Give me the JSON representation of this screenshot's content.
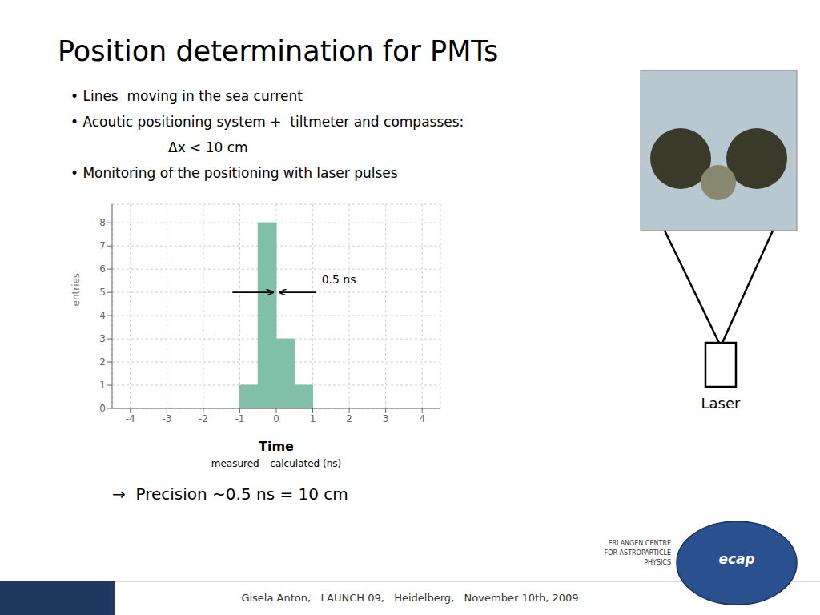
{
  "chart_data": {
    "type": "histogram",
    "title": "Position determination for PMTs",
    "bins": [
      -1.5,
      -1.0,
      -0.5,
      0.0,
      0.5,
      1.0,
      1.5
    ],
    "values": [
      0,
      1,
      8,
      3,
      1,
      0
    ],
    "color": "#82BFA8",
    "xlabel": "Time",
    "ylabel": "entries",
    "xlim": [
      -4.5,
      4.5
    ],
    "ylim": [
      0,
      8.8
    ],
    "xticks": [
      -4,
      -3,
      -2,
      -1,
      0,
      1,
      2,
      3,
      4
    ],
    "yticks": [
      0,
      1,
      2,
      3,
      4,
      5,
      6,
      7,
      8
    ],
    "grid": true,
    "annotations": [
      {
        "text": "• Lines  moving in the sea current"
      },
      {
        "text": "• Acoutic positioning system +  tiltmeter and compasses:"
      },
      {
        "text": "Δx < 10 cm"
      },
      {
        "text": "• Monitoring of the positioning with laser pulses"
      },
      {
        "text": "measured – calculated (ns)"
      },
      {
        "text": "0.5 ns",
        "x": 1.2,
        "y": 5.55,
        "arrows": [
          {
            "from": [
              -1.2,
              5.0
            ],
            "to": [
              -0.08,
              5.0
            ]
          },
          {
            "from": [
              1.1,
              5.0
            ],
            "to": [
              0.08,
              5.0
            ]
          }
        ]
      },
      {
        "text": "→  Precision ~0.5 ns = 10 cm"
      },
      {
        "text": "Laser"
      },
      {
        "text": "Gisela Anton,   LAUNCH 09,   Heidelberg,   November 10th, 2009"
      },
      {
        "text": "ecap"
      },
      {
        "text": "ERLANGEN CENTRE\nFOR ASTROPARTICLE\nPHYSICS"
      }
    ]
  }
}
